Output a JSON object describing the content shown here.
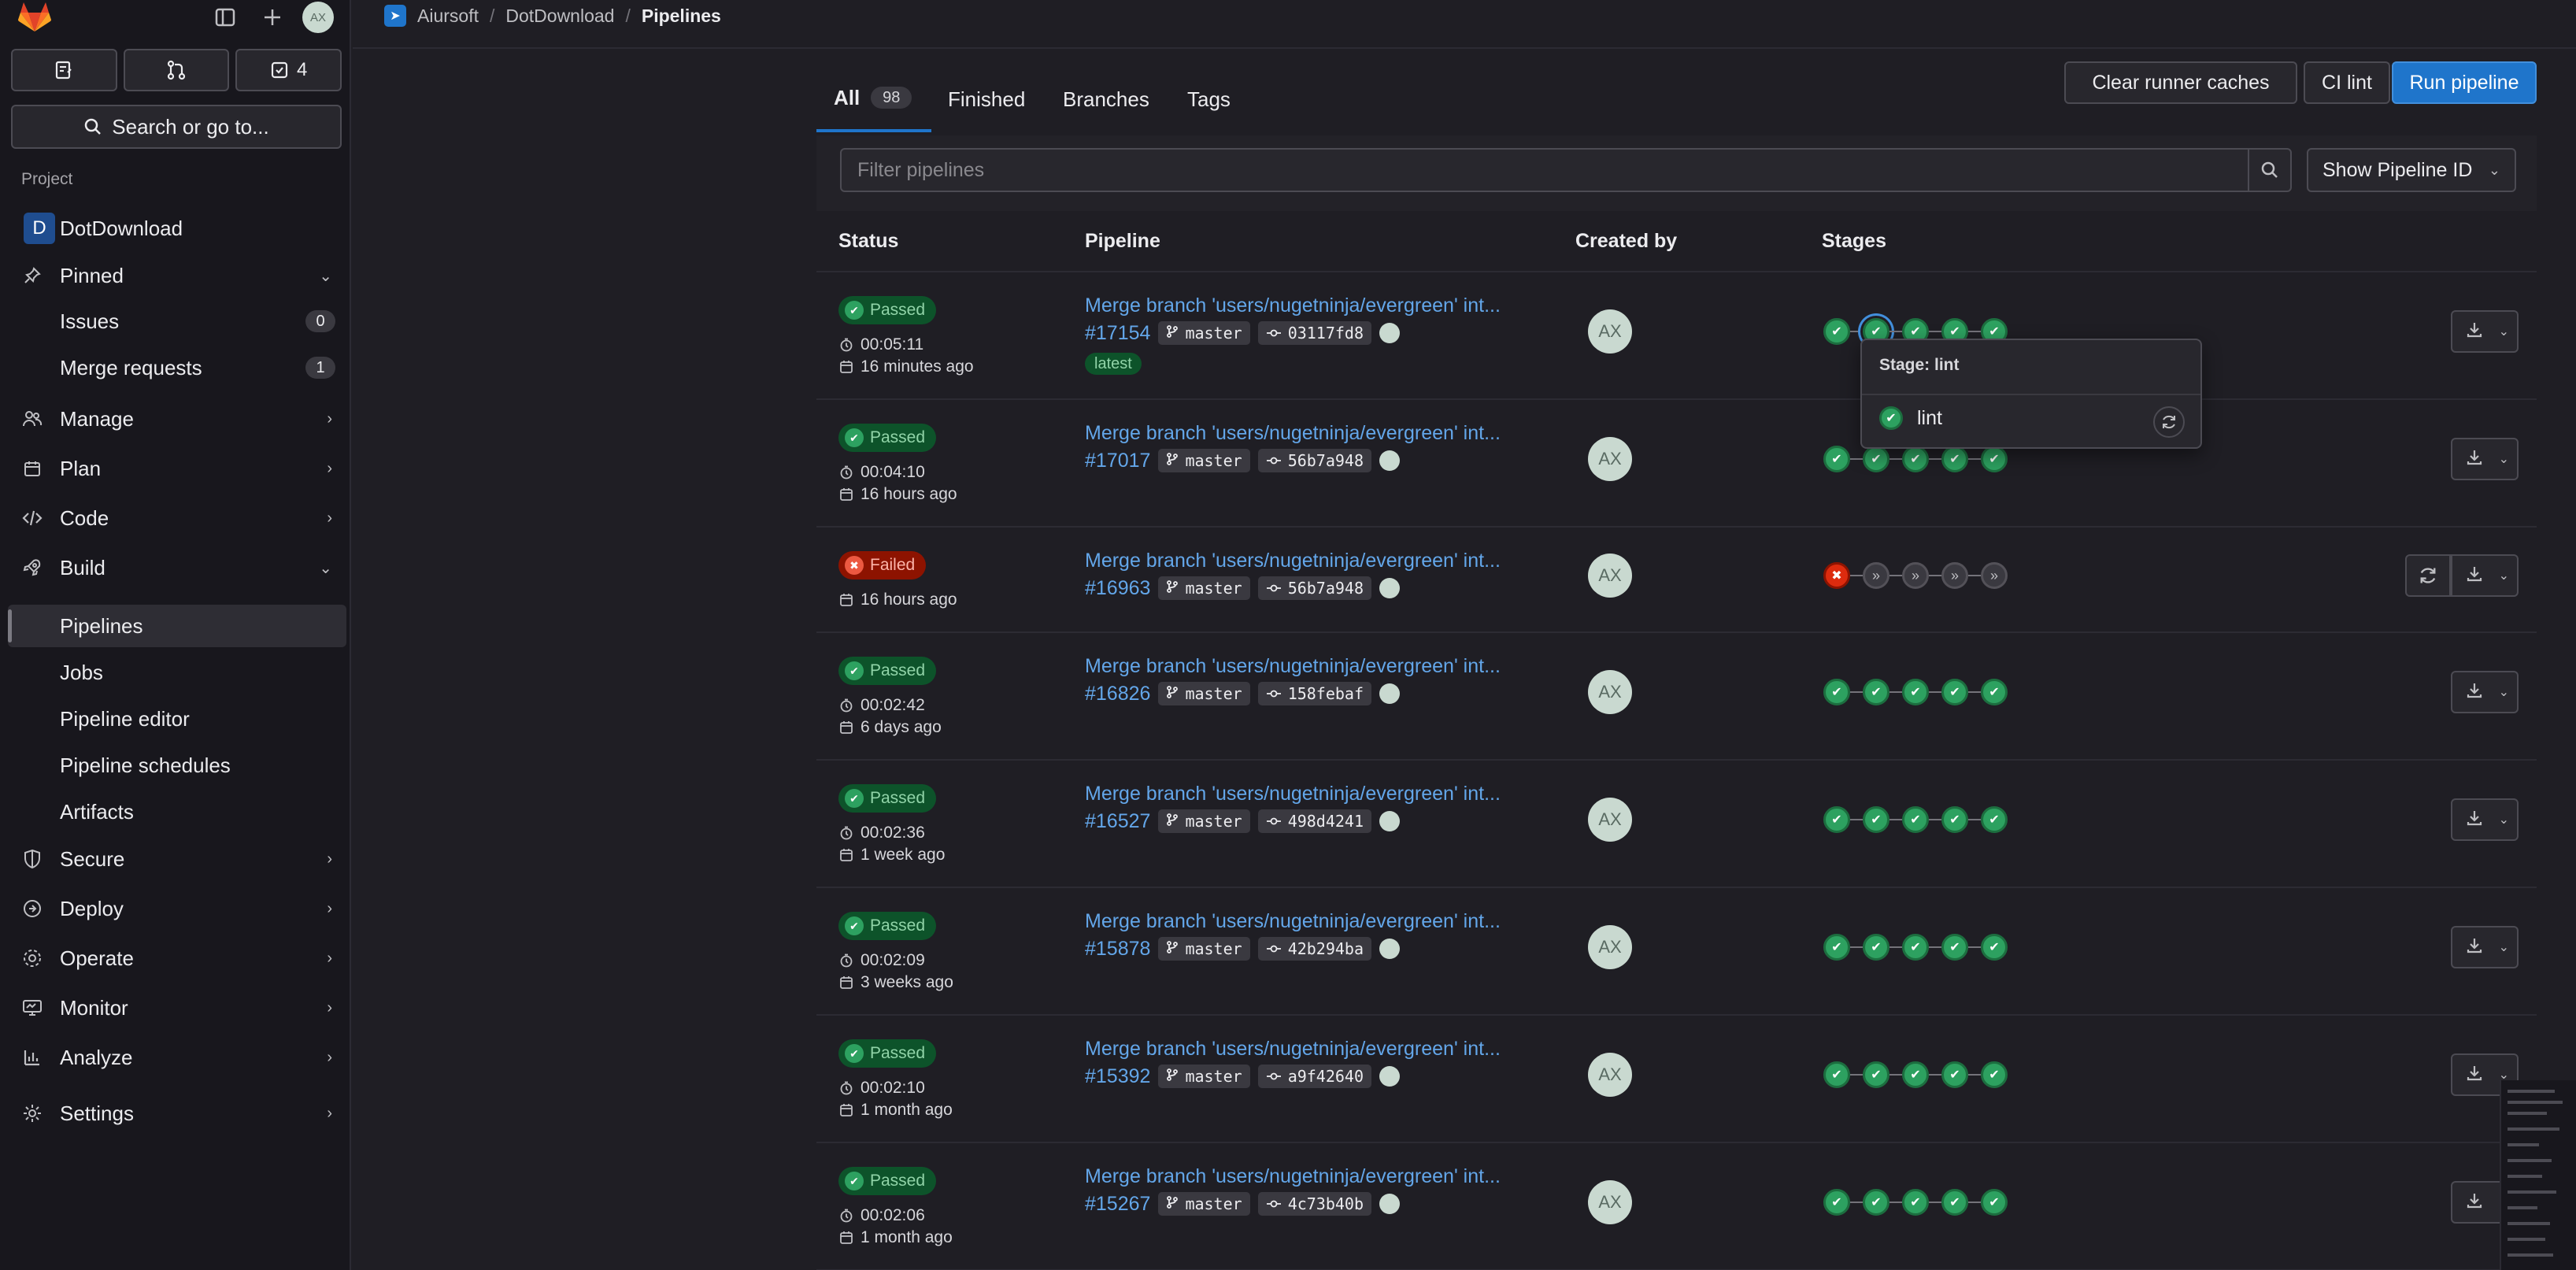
{
  "sidebar": {
    "avatar_initials": "AX",
    "top_buttons": {
      "issues_count": "4"
    },
    "search_label": "Search or go to...",
    "section_label": "Project",
    "project_name": "DotDownload",
    "project_initial": "D",
    "items": {
      "pinned": "Pinned",
      "issues": "Issues",
      "issues_count": "0",
      "merge_requests": "Merge requests",
      "merge_requests_count": "1",
      "manage": "Manage",
      "plan": "Plan",
      "code": "Code",
      "build": "Build",
      "pipelines": "Pipelines",
      "jobs": "Jobs",
      "pipeline_editor": "Pipeline editor",
      "pipeline_schedules": "Pipeline schedules",
      "artifacts": "Artifacts",
      "secure": "Secure",
      "deploy": "Deploy",
      "operate": "Operate",
      "monitor": "Monitor",
      "analyze": "Analyze",
      "settings": "Settings"
    }
  },
  "breadcrumb": {
    "group": "Aiursoft",
    "project": "DotDownload",
    "current": "Pipelines"
  },
  "tabs": {
    "all": "All",
    "all_count": "98",
    "finished": "Finished",
    "branches": "Branches",
    "tags": "Tags"
  },
  "actions": {
    "clear_caches": "Clear runner caches",
    "ci_lint": "CI lint",
    "run_pipeline": "Run pipeline"
  },
  "filter": {
    "placeholder": "Filter pipelines",
    "show_id": "Show Pipeline ID"
  },
  "table": {
    "headers": {
      "status": "Status",
      "pipeline": "Pipeline",
      "created_by": "Created by",
      "stages": "Stages"
    },
    "rows": [
      {
        "status": "Passed",
        "duration": "00:05:11",
        "time": "16 minutes ago",
        "title": "Merge branch 'users/nugetninja/evergreen' int...",
        "id": "#17154",
        "branch": "master",
        "sha": "03117fd8",
        "latest": "latest",
        "creator": "AX"
      },
      {
        "status": "Passed",
        "duration": "00:04:10",
        "time": "16 hours ago",
        "title": "Merge branch 'users/nugetninja/evergreen' int...",
        "id": "#17017",
        "branch": "master",
        "sha": "56b7a948",
        "creator": "AX"
      },
      {
        "status": "Failed",
        "time": "16 hours ago",
        "title": "Merge branch 'users/nugetninja/evergreen' int...",
        "id": "#16963",
        "branch": "master",
        "sha": "56b7a948",
        "creator": "AX"
      },
      {
        "status": "Passed",
        "duration": "00:02:42",
        "time": "6 days ago",
        "title": "Merge branch 'users/nugetninja/evergreen' int...",
        "id": "#16826",
        "branch": "master",
        "sha": "158febaf",
        "creator": "AX"
      },
      {
        "status": "Passed",
        "duration": "00:02:36",
        "time": "1 week ago",
        "title": "Merge branch 'users/nugetninja/evergreen' int...",
        "id": "#16527",
        "branch": "master",
        "sha": "498d4241",
        "creator": "AX"
      },
      {
        "status": "Passed",
        "duration": "00:02:09",
        "time": "3 weeks ago",
        "title": "Merge branch 'users/nugetninja/evergreen' int...",
        "id": "#15878",
        "branch": "master",
        "sha": "42b294ba",
        "creator": "AX"
      },
      {
        "status": "Passed",
        "duration": "00:02:10",
        "time": "1 month ago",
        "title": "Merge branch 'users/nugetninja/evergreen' int...",
        "id": "#15392",
        "branch": "master",
        "sha": "a9f42640",
        "creator": "AX"
      },
      {
        "status": "Passed",
        "duration": "00:02:06",
        "time": "1 month ago",
        "title": "Merge branch 'users/nugetninja/evergreen' int...",
        "id": "#15267",
        "branch": "master",
        "sha": "4c73b40b",
        "creator": "AX"
      }
    ]
  },
  "popover": {
    "title": "Stage: lint",
    "job": "lint"
  },
  "colors": {
    "success": "#2da160",
    "failed": "#dd2b0e",
    "link": "#63a6e9",
    "primary": "#1f75cb"
  }
}
